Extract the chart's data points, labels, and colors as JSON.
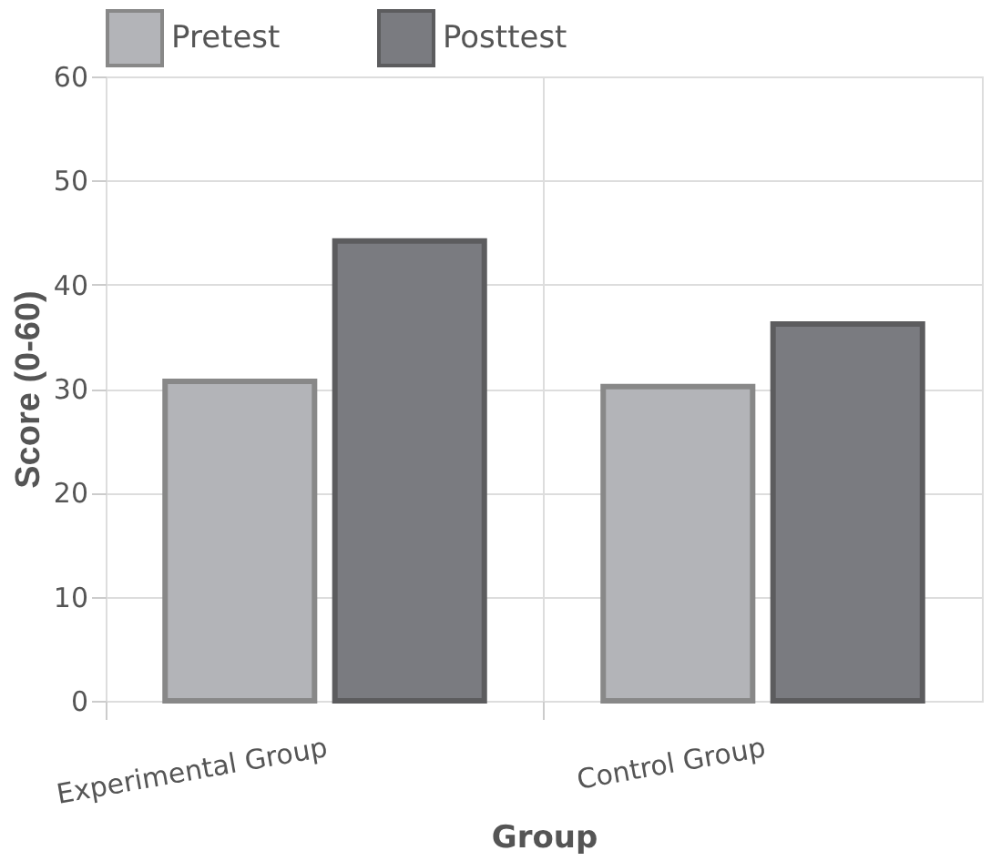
{
  "chart_data": {
    "type": "bar",
    "xlabel": "Group",
    "ylabel": "Score (0-60)",
    "categories": [
      "Experimental Group",
      "Control Group"
    ],
    "series": [
      {
        "name": "Pretest",
        "color": "#b3b4b8",
        "values": [
          30.7,
          30.2
        ]
      },
      {
        "name": "Posttest",
        "color": "#7a7b80",
        "values": [
          44.2,
          36.2
        ]
      }
    ],
    "ylim": [
      0,
      60
    ],
    "yticks": [
      0,
      10,
      20,
      30,
      40,
      50,
      60
    ],
    "grid": true,
    "legend": "top left"
  }
}
